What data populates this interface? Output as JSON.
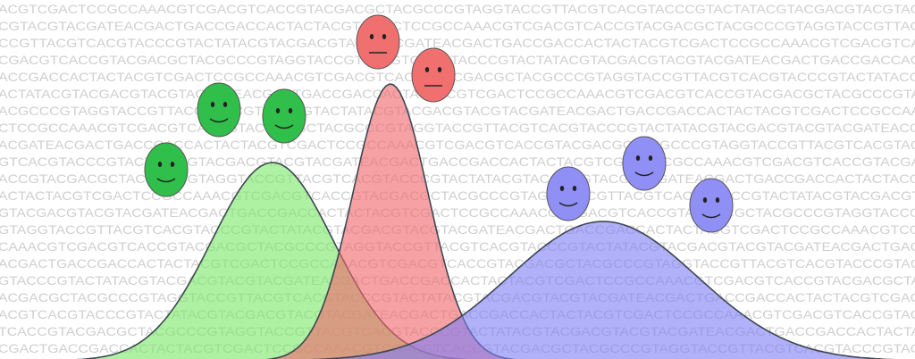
{
  "background_text": {
    "rows": [
      "ACGTCGACTCCGCCAAACGTCGACGTCACCGTACGACGCTACGCCCGTAGGTACCGTTACGTCACGTACCCGTACTATACGTACGACGTACGTAC",
      "CGTACGTACGATEACGACTGACCGACCACTACTACGTCGACTCCGCCAAACGTCGACGTCACCGTACGACGCTACGCCCGTAGGTACCGTTAC",
      "CCGTTACGTCACGTACCCGTACTATACGTACGACGTACGTACGATEACGACTGACCGACCACTACTACGTCGACTCCGCCAAACGTCGACGTCA",
      "CGACGTCACCGTACGACGCTACGCCCGTAGGTACCGTTACGTCACGTACCCGTACTATACGTACGACGTACGTACGATEACGACTGACCGACCAC",
      "ACCGACCACTACTACGTCGACTCCGCCAAACGTCGACGTCACCGTACGACGCTACGCCCGTAGGTACCGTTACGTCACGTACCCGTACTATACG",
      "ACTATACGTACGACGTACGTACGATEACGACTGACCGACCACTACTACGTCGACTCCGCCAAACGTCGACGTCACCGTACGACGCTACGCCCGTA",
      "ACGCCCGTAGGTACCGTTACGTCACGTACCCGTACTATACGTACGACGTACGTACGATEACGACTGACCGACCACTACTACGTCGACTCCGCCAA",
      "CTCCGCCAAACGTCGACGTCACCGTACGACGCTACGCCCGTAGGTACCGTTACGTCACGTACCCGTACTATACGTACGACGTACGTACGATEACG",
      "ACGATEACGACTGACCGACCACTACTACGTCGACTCCGCCAAACGTCGACGTCACCGTACGACGCTACGCCCGTAGGTACCGTTACGTCACGTAC",
      "GTCACGTACCCGTACTATACGTACGACGTACGTACGATEACGACTGACCGACCACTACTACGTCGACTCCGCCAAACGTCGACGTCACCGTACGA",
      "ACCGTACGACGCTACGCCCGTAGGTACCGTTACGTCACGTACCCGTACTATACGTACGACGTACGTACGATEACGACTGACCGACCACTACTACG",
      "ACTACTACGTCGACTCCGCCAAACGTCGACGTCACCGTACGACGCTACGCCCGTAGGTACCGTTACGTCACGTACCCGTACTATACGTACGACGT",
      "GTACGACGTACGTACGATEACGACTGACCGACCACTACTACGTCGACTCCGCCAAACGTCGACGTCACCGTACGACGCTACGCCCGTAGGTACCG",
      "GTAGGTACCGTTACGTCACGTACCCGTACTATACGTACGACGTACGTACGATEACGACTGACCGACCACTACTACGTCGACTCCGCCAAACGTCG",
      "CAAACGTCGACGTCACCGTACGACGCTACGCCCGTAGGTACCGTTACGTCACGTACCCGTACTATACGTACGACGTACGTACGATEACGACTGAC",
      "ACGACTGACCGACCACTACTACGTCGACTCCGCCAAACGTCGACGTCACCGTACGACGCTACGCCCGTAGGTACCGTTACGTCACGTACCCGTAC",
      "GTACCCGTACTATACGTACGACGTACGTACGATEACGACTGACCGACCACTACTACGTCGACTCCGCCAAACGTCGACGTCACCGTACGACGCTA",
      "ACGACGCTACGCCCGTAGGTACCGTTACGTCACGTACCCGTACTATACGTACGACGTACGTACGATEACGACTGACCGACCACTACTACGTCGAC",
      "ACGTCACGTACCCGTACTATACGTACGACGTACGTACGATEACGACTGACCGACCACTACTACGTCGACTCCGCCAAACGTCGACGTCACCGTAC",
      "TCACCGTACGACGCTACGCCCGTAGGTACCGTTACGTCACGTACCCGTACTATACGTACGACGTACGTACGATEACGACTGACCGACCACTACTA",
      "CGACTGACCGACCACTACTACGTCGACTCCGCCAAACGTCGACGTCACCGTACGACGCTACGCCCGTAGGTACCGTTACGTCACGTACCCGTAC"
    ]
  }
}
